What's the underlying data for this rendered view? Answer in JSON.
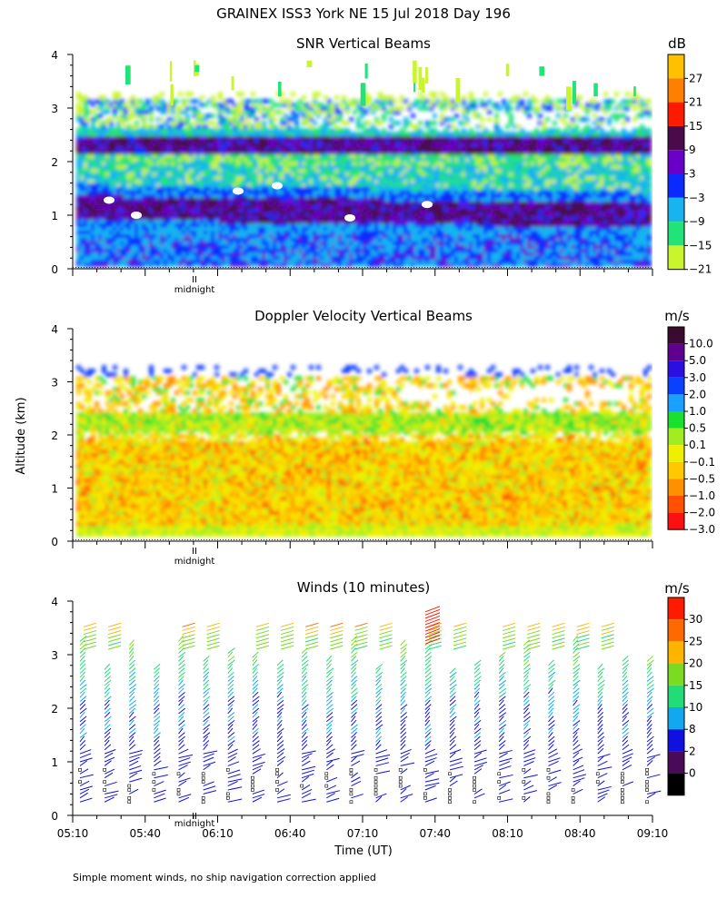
{
  "figure_title": "GRAINEX ISS3 York NE  15 Jul 2018 Day 196",
  "footer_note": "Simple moment winds, no ship navigation correction applied",
  "y_axis_label": "Altitude (km)",
  "x_axis_label": "Time (UT)",
  "midnight_label": "midnight",
  "midnight_marker": "II",
  "chart_data": [
    {
      "type": "heatmap",
      "title": "SNR Vertical Beams",
      "units": "dB",
      "ylabel": "Altitude (km)",
      "ylim": [
        0,
        4
      ],
      "yticks": [
        0,
        1,
        2,
        3,
        4
      ],
      "x_range_ut": [
        "05:10",
        "09:10"
      ],
      "colorbar_labels": [
        "27",
        "21",
        "15",
        "9",
        "3",
        "−3",
        "−9",
        "−15",
        "−21"
      ],
      "colorbar_colors": [
        "#FFC000",
        "#FF8000",
        "#FF1A00",
        "#4B0A4B",
        "#6A00C8",
        "#0A2AFF",
        "#18B4F0",
        "#22E27A",
        "#C8F52C"
      ],
      "layers": [
        {
          "from_km": 0.05,
          "to_km": 0.6,
          "color": "blue",
          "description": "blue/cyan mix near ground"
        },
        {
          "from_km": 0.9,
          "to_km": 1.4,
          "color": "purple",
          "description": "strong purple band near 1.1 km"
        },
        {
          "from_km": 1.5,
          "to_km": 2.15,
          "color": "green",
          "description": "green/cyan band"
        },
        {
          "from_km": 2.2,
          "to_km": 2.5,
          "color": "purple",
          "description": "purple band near 2.3 km"
        },
        {
          "from_km": 2.5,
          "to_km": 3.2,
          "color": "mixed",
          "description": "broken blue/green/yellow above"
        }
      ]
    },
    {
      "type": "heatmap",
      "title": "Doppler Velocity Vertical Beams",
      "units": "m/s",
      "ylabel": "Altitude (km)",
      "ylim": [
        0,
        4
      ],
      "yticks": [
        0,
        1,
        2,
        3,
        4
      ],
      "x_range_ut": [
        "05:10",
        "09:10"
      ],
      "colorbar_labels": [
        "10.0",
        "5.0",
        "3.0",
        "2.0",
        "1.0",
        "0.5",
        "0.1",
        "−0.1",
        "−0.5",
        "−1.0",
        "−2.0",
        "−3.0"
      ],
      "colorbar_colors": [
        "#3A0A30",
        "#600090",
        "#2A10E0",
        "#0A40FF",
        "#1AA0FF",
        "#1AE030",
        "#A0EE20",
        "#EEF000",
        "#FFC800",
        "#FF9000",
        "#FF5000",
        "#FF1010"
      ],
      "field_description": "mostly yellow/orange (weak downward) from 0.1 to 2.4 km with green patches above 2 km; sparse returns up to 3.2 km"
    },
    {
      "type": "wind_barbs",
      "title": "Winds (10 minutes)",
      "units": "m/s",
      "ylabel": "Altitude (km)",
      "xlabel": "Time (UT)",
      "ylim": [
        0,
        4
      ],
      "yticks": [
        0,
        1,
        2,
        3,
        4
      ],
      "xticks": [
        "05:10",
        "05:40",
        "06:10",
        "06:40",
        "07:10",
        "07:40",
        "08:10",
        "08:40",
        "09:10"
      ],
      "profile_count": 24,
      "colorbar_labels": [
        "30",
        "25",
        "20",
        "15",
        "10",
        "8",
        "2",
        "0"
      ],
      "colorbar_colors": [
        "#FF1A00",
        "#FF6A00",
        "#FFB400",
        "#7ADB20",
        "#22DC78",
        "#12A8F0",
        "#1010E0",
        "#4A0A5A",
        "#000000"
      ],
      "speed_profile_ms": [
        {
          "alt_km": 0.3,
          "speed": 3
        },
        {
          "alt_km": 0.9,
          "speed": 4
        },
        {
          "alt_km": 1.4,
          "speed": 7
        },
        {
          "alt_km": 2.0,
          "speed": 8
        },
        {
          "alt_km": 2.5,
          "speed": 11
        },
        {
          "alt_km": 3.3,
          "speed": 17
        },
        {
          "alt_km": 3.7,
          "speed": 29
        }
      ]
    }
  ]
}
